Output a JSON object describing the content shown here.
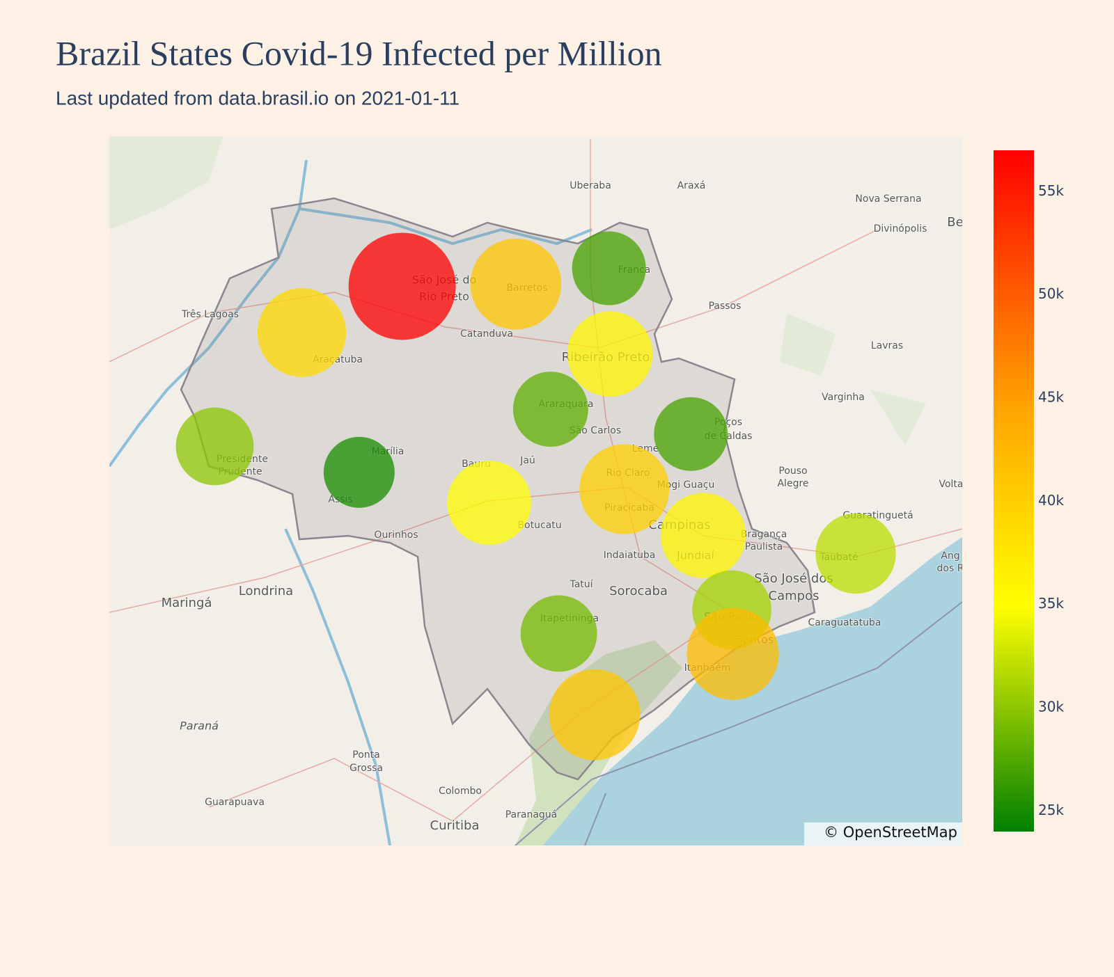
{
  "chart_data": {
    "type": "bubblemap",
    "title": "Brazil States Covid-19 Infected per Million",
    "subtitle": "Last updated from data.brasil.io on 2021-01-11",
    "lonlim": [
      -52.69,
      -44.36
    ],
    "latlim": [
      -19.31,
      -25.6
    ],
    "clim": [
      24000,
      57000
    ],
    "colorscale": [
      [
        0,
        "#008000"
      ],
      [
        0.33,
        "#ffff00"
      ],
      [
        0.62,
        "#ffa500"
      ],
      [
        1,
        "#ff0000"
      ]
    ],
    "opacity": 0.75,
    "cticks": [
      {
        "value": 25000,
        "label": "25k"
      },
      {
        "value": 30000,
        "label": "30k"
      },
      {
        "value": 35000,
        "label": "35k"
      },
      {
        "value": 40000,
        "label": "40k"
      },
      {
        "value": 45000,
        "label": "45k"
      },
      {
        "value": 50000,
        "label": "50k"
      },
      {
        "value": 55000,
        "label": "55k"
      }
    ],
    "points": [
      {
        "lon": -49.83,
        "lat": -20.64,
        "value": 57000
      },
      {
        "lon": -48.72,
        "lat": -20.62,
        "value": 41000
      },
      {
        "lon": -47.81,
        "lat": -20.48,
        "value": 27000
      },
      {
        "lon": -47.8,
        "lat": -21.24,
        "value": 36000
      },
      {
        "lon": -50.81,
        "lat": -21.05,
        "value": 39000
      },
      {
        "lon": -48.38,
        "lat": -21.73,
        "value": 28000
      },
      {
        "lon": -47.01,
        "lat": -21.95,
        "value": 27000
      },
      {
        "lon": -51.66,
        "lat": -22.06,
        "value": 30000
      },
      {
        "lon": -50.25,
        "lat": -22.29,
        "value": 25000
      },
      {
        "lon": -48.98,
        "lat": -22.56,
        "value": 35000
      },
      {
        "lon": -47.66,
        "lat": -22.44,
        "value": 40000
      },
      {
        "lon": -46.89,
        "lat": -22.85,
        "value": 36000
      },
      {
        "lon": -45.4,
        "lat": -23.01,
        "value": 32000
      },
      {
        "lon": -46.61,
        "lat": -23.51,
        "value": 31000
      },
      {
        "lon": -46.6,
        "lat": -23.9,
        "value": 42000
      },
      {
        "lon": -48.3,
        "lat": -23.72,
        "value": 29000
      },
      {
        "lon": -47.95,
        "lat": -24.44,
        "value": 41000
      }
    ]
  },
  "map": {
    "attribution": "© OpenStreetMap",
    "labels": [
      "Uberaba",
      "Araxá",
      "Nova Serrana",
      "Divinópolis",
      "Passos",
      "Três Lagoas",
      "Catanduva",
      "Lavras",
      "Varginha",
      "São José do",
      "Rio Preto",
      "Barretos",
      "Franca",
      "Ribeirão Preto",
      "Araçatuba",
      "Araraquara",
      "São Carlos",
      "Poços",
      "de Caldas",
      "Presidente",
      "Prudente",
      "Marília",
      "Bauru",
      "Jaú",
      "Leme",
      "Rio Claro",
      "Mogi Guaçu",
      "Pouso",
      "Alegre",
      "Assis",
      "Piracicaba",
      "Campinas",
      "Botucatu",
      "Ourinhos",
      "Bragança",
      "Paulista",
      "Guaratinguetá",
      "Taubaté",
      "Jundiaí",
      "Indaiatuba",
      "São José dos",
      "Campos",
      "Londrina",
      "Maringá",
      "Tatuí",
      "Sorocaba",
      "São Paulo",
      "Caraguatatuba",
      "Itapetininga",
      "Santos",
      "Itanhaém",
      "Paraná",
      "Ponta",
      "Grossa",
      "Colombo",
      "Guarapuava",
      "Paranaguá",
      "Curitiba",
      "Volta",
      "Ang",
      "dos R",
      "Be"
    ]
  }
}
